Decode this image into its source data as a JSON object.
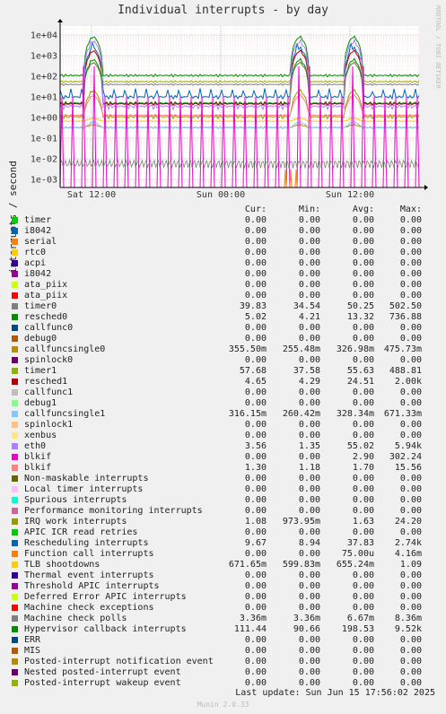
{
  "chart_data": {
    "type": "line",
    "title": "Individual interrupts - by day",
    "ylabel": "interrupts / second",
    "y_scale": "log",
    "y_ticks": [
      "1e-03",
      "1e-02",
      "1e-01",
      "1e+00",
      "1e+01",
      "1e+02",
      "1e+03",
      "1e+04"
    ],
    "x_ticks": [
      "Sat 12:00",
      "Sun 00:00",
      "Sun 12:00"
    ],
    "grid": true,
    "side_label": "RRDTOOL / TOBI OETIKER",
    "columns": [
      "Cur:",
      "Min:",
      "Avg:",
      "Max:"
    ],
    "series": [
      {
        "name": "timer",
        "color": "#00cc00",
        "cur": "0.00",
        "min": "0.00",
        "avg": "0.00",
        "max": "0.00"
      },
      {
        "name": "i8042",
        "color": "#0066b3",
        "cur": "0.00",
        "min": "0.00",
        "avg": "0.00",
        "max": "0.00"
      },
      {
        "name": "serial",
        "color": "#ff8000",
        "cur": "0.00",
        "min": "0.00",
        "avg": "0.00",
        "max": "0.00"
      },
      {
        "name": "rtc0",
        "color": "#ffcc00",
        "cur": "0.00",
        "min": "0.00",
        "avg": "0.00",
        "max": "0.00"
      },
      {
        "name": "acpi",
        "color": "#330099",
        "cur": "0.00",
        "min": "0.00",
        "avg": "0.00",
        "max": "0.00"
      },
      {
        "name": "i8042",
        "color": "#990099",
        "cur": "0.00",
        "min": "0.00",
        "avg": "0.00",
        "max": "0.00"
      },
      {
        "name": "ata_piix",
        "color": "#ccff00",
        "cur": "0.00",
        "min": "0.00",
        "avg": "0.00",
        "max": "0.00"
      },
      {
        "name": "ata_piix",
        "color": "#ff0000",
        "cur": "0.00",
        "min": "0.00",
        "avg": "0.00",
        "max": "0.00"
      },
      {
        "name": "timer0",
        "color": "#808080",
        "cur": "39.83",
        "min": "34.54",
        "avg": "50.25",
        "max": "502.50"
      },
      {
        "name": "resched0",
        "color": "#008f00",
        "cur": "5.02",
        "min": "4.21",
        "avg": "13.32",
        "max": "736.88"
      },
      {
        "name": "callfunc0",
        "color": "#00487d",
        "cur": "0.00",
        "min": "0.00",
        "avg": "0.00",
        "max": "0.00"
      },
      {
        "name": "debug0",
        "color": "#b35a00",
        "cur": "0.00",
        "min": "0.00",
        "avg": "0.00",
        "max": "0.00"
      },
      {
        "name": "callfuncsingle0",
        "color": "#b38f00",
        "cur": "355.50m",
        "min": "255.48m",
        "avg": "326.98m",
        "max": "475.73m"
      },
      {
        "name": "spinlock0",
        "color": "#6b006b",
        "cur": "0.00",
        "min": "0.00",
        "avg": "0.00",
        "max": "0.00"
      },
      {
        "name": "timer1",
        "color": "#8fb300",
        "cur": "57.68",
        "min": "37.58",
        "avg": "55.63",
        "max": "488.81"
      },
      {
        "name": "resched1",
        "color": "#b30000",
        "cur": "4.65",
        "min": "4.29",
        "avg": "24.51",
        "max": "2.00k"
      },
      {
        "name": "callfunc1",
        "color": "#bebebe",
        "cur": "0.00",
        "min": "0.00",
        "avg": "0.00",
        "max": "0.00"
      },
      {
        "name": "debug1",
        "color": "#80ff80",
        "cur": "0.00",
        "min": "0.00",
        "avg": "0.00",
        "max": "0.00"
      },
      {
        "name": "callfuncsingle1",
        "color": "#80c9ff",
        "cur": "316.15m",
        "min": "260.42m",
        "avg": "328.34m",
        "max": "671.33m"
      },
      {
        "name": "spinlock1",
        "color": "#ffc080",
        "cur": "0.00",
        "min": "0.00",
        "avg": "0.00",
        "max": "0.00"
      },
      {
        "name": "xenbus",
        "color": "#ffe680",
        "cur": "0.00",
        "min": "0.00",
        "avg": "0.00",
        "max": "0.00"
      },
      {
        "name": "eth0",
        "color": "#aa80ff",
        "cur": "3.56",
        "min": "1.35",
        "avg": "55.02",
        "max": "5.94k"
      },
      {
        "name": "blkif",
        "color": "#ee00cc",
        "cur": "0.00",
        "min": "0.00",
        "avg": "2.90",
        "max": "302.24"
      },
      {
        "name": "blkif",
        "color": "#ff8080",
        "cur": "1.30",
        "min": "1.18",
        "avg": "1.70",
        "max": "15.56"
      },
      {
        "name": "Non-maskable interrupts",
        "color": "#666600",
        "cur": "0.00",
        "min": "0.00",
        "avg": "0.00",
        "max": "0.00"
      },
      {
        "name": "Local timer interrupts",
        "color": "#ffbfff",
        "cur": "0.00",
        "min": "0.00",
        "avg": "0.00",
        "max": "0.00"
      },
      {
        "name": "Spurious interrupts",
        "color": "#00ffcc",
        "cur": "0.00",
        "min": "0.00",
        "avg": "0.00",
        "max": "0.00"
      },
      {
        "name": "Performance monitoring interrupts",
        "color": "#cc6699",
        "cur": "0.00",
        "min": "0.00",
        "avg": "0.00",
        "max": "0.00"
      },
      {
        "name": "IRQ work interrupts",
        "color": "#999900",
        "cur": "1.08",
        "min": "973.95m",
        "avg": "1.63",
        "max": "24.20"
      },
      {
        "name": "APIC ICR read retries",
        "color": "#00cc00",
        "cur": "0.00",
        "min": "0.00",
        "avg": "0.00",
        "max": "0.00"
      },
      {
        "name": "Rescheduling interrupts",
        "color": "#0066b3",
        "cur": "9.67",
        "min": "8.94",
        "avg": "37.83",
        "max": "2.74k"
      },
      {
        "name": "Function call interrupts",
        "color": "#ff8000",
        "cur": "0.00",
        "min": "0.00",
        "avg": "75.00u",
        "max": "4.16m"
      },
      {
        "name": "TLB shootdowns",
        "color": "#ffcc00",
        "cur": "671.65m",
        "min": "599.83m",
        "avg": "655.24m",
        "max": "1.09"
      },
      {
        "name": "Thermal event interrupts",
        "color": "#330099",
        "cur": "0.00",
        "min": "0.00",
        "avg": "0.00",
        "max": "0.00"
      },
      {
        "name": "Threshold APIC interrupts",
        "color": "#990099",
        "cur": "0.00",
        "min": "0.00",
        "avg": "0.00",
        "max": "0.00"
      },
      {
        "name": "Deferred Error APIC interrupts",
        "color": "#ccff00",
        "cur": "0.00",
        "min": "0.00",
        "avg": "0.00",
        "max": "0.00"
      },
      {
        "name": "Machine check exceptions",
        "color": "#ff0000",
        "cur": "0.00",
        "min": "0.00",
        "avg": "0.00",
        "max": "0.00"
      },
      {
        "name": "Machine check polls",
        "color": "#808080",
        "cur": "3.36m",
        "min": "3.36m",
        "avg": "6.67m",
        "max": "8.36m"
      },
      {
        "name": "Hypervisor callback interrupts",
        "color": "#008f00",
        "cur": "111.44",
        "min": "90.66",
        "avg": "198.53",
        "max": "9.52k"
      },
      {
        "name": "ERR",
        "color": "#00487d",
        "cur": "0.00",
        "min": "0.00",
        "avg": "0.00",
        "max": "0.00"
      },
      {
        "name": "MIS",
        "color": "#b35a00",
        "cur": "0.00",
        "min": "0.00",
        "avg": "0.00",
        "max": "0.00"
      },
      {
        "name": "Posted-interrupt notification event",
        "color": "#b38f00",
        "cur": "0.00",
        "min": "0.00",
        "avg": "0.00",
        "max": "0.00"
      },
      {
        "name": "Nested posted-interrupt event",
        "color": "#6b006b",
        "cur": "0.00",
        "min": "0.00",
        "avg": "0.00",
        "max": "0.00"
      },
      {
        "name": "Posted-interrupt wakeup event",
        "color": "#8fb300",
        "cur": "0.00",
        "min": "0.00",
        "avg": "0.00",
        "max": "0.00"
      }
    ]
  },
  "footer": {
    "last_update": "Last update:  Sun Jun 15 17:56:02 2025",
    "version": "Munin 2.0.33"
  }
}
